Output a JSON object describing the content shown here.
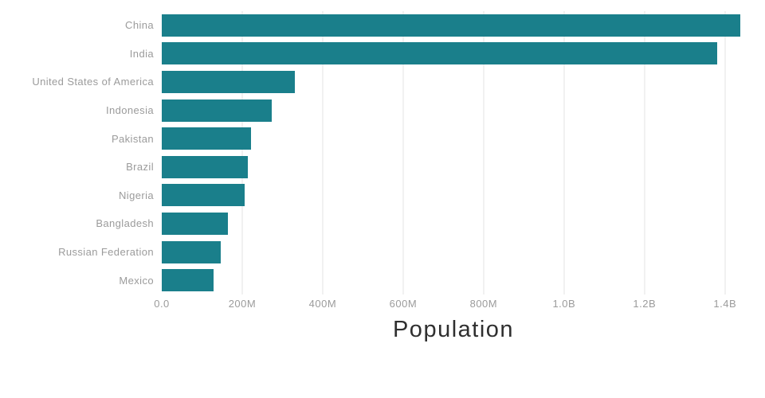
{
  "chart_data": {
    "type": "bar",
    "orientation": "horizontal",
    "title": "",
    "xlabel": "Population",
    "ylabel": "",
    "unit": "people",
    "values_in": "millions",
    "categories": [
      "China",
      "India",
      "United States of America",
      "Indonesia",
      "Pakistan",
      "Brazil",
      "Nigeria",
      "Bangladesh",
      "Russian Federation",
      "Mexico"
    ],
    "values": [
      1439,
      1380,
      331,
      273,
      221,
      213,
      206,
      165,
      146,
      129
    ],
    "xlim": [
      0,
      1450
    ],
    "xticks": [
      {
        "value": 0,
        "label": "0.0"
      },
      {
        "value": 200,
        "label": "200M"
      },
      {
        "value": 400,
        "label": "400M"
      },
      {
        "value": 600,
        "label": "600M"
      },
      {
        "value": 800,
        "label": "800M"
      },
      {
        "value": 1000,
        "label": "1.0B"
      },
      {
        "value": 1200,
        "label": "1.2B"
      },
      {
        "value": 1400,
        "label": "1.4B"
      }
    ],
    "grid": true,
    "legend": "none",
    "bar_color": "#1a7f8b",
    "gridline_color": "#e3e3e3",
    "label_color": "#9b9b9b",
    "title_color": "#2f2f2f"
  }
}
